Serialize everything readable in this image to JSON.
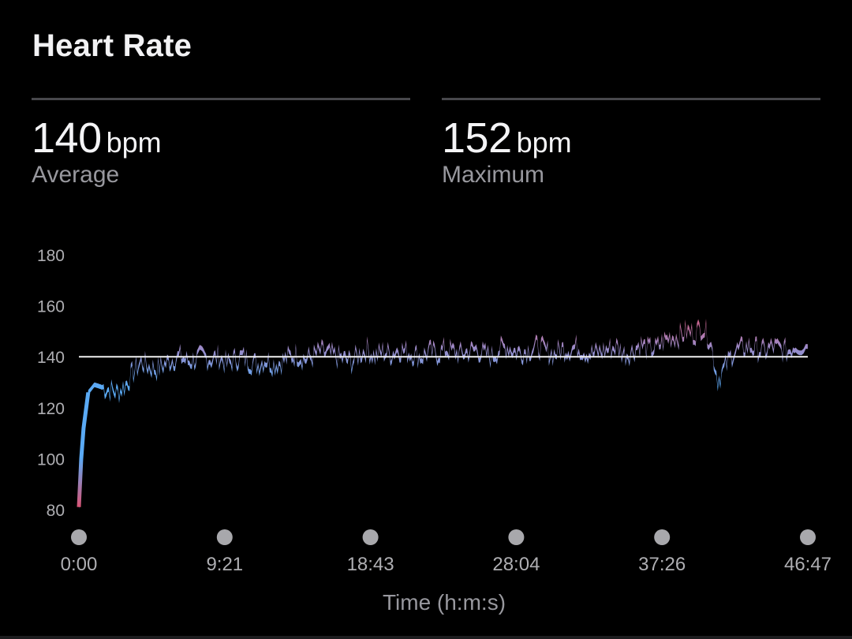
{
  "header": {
    "title": "Heart Rate"
  },
  "stats": {
    "average": {
      "value": "140",
      "unit": "bpm",
      "label": "Average"
    },
    "maximum": {
      "value": "152",
      "unit": "bpm",
      "label": "Maximum"
    }
  },
  "colors": {
    "background": "#000000",
    "low": "#5aaaf5",
    "mid": "#9d8ac8",
    "high": "#e0506e",
    "reference_line": "#f0f0f0",
    "axis_text": "#aeaeb2"
  },
  "chart_data": {
    "type": "area",
    "title": "Heart Rate",
    "xlabel": "Time (h:m:s)",
    "ylabel": "bpm",
    "ylim": [
      80,
      180
    ],
    "y_ticks": [
      "180",
      "160",
      "140",
      "120",
      "100",
      "80"
    ],
    "x_ticks": [
      "0:00",
      "9:21",
      "18:43",
      "28:04",
      "37:26",
      "46:47"
    ],
    "x_range_seconds": [
      0,
      2807
    ],
    "reference_line": {
      "value": 140,
      "label": "Average"
    },
    "grid": false,
    "legend": null,
    "series": [
      {
        "name": "Heart Rate (bpm)",
        "x_minutes": [
          0,
          0.3,
          0.6,
          1,
          1.5,
          2,
          2.5,
          3,
          3.5,
          4,
          4.5,
          5,
          5.5,
          6,
          6.5,
          7,
          7.5,
          8,
          8.5,
          9,
          9.5,
          10,
          10.5,
          11,
          11.5,
          12,
          12.5,
          13,
          13.5,
          14,
          14.5,
          15,
          15.5,
          16,
          16.5,
          17,
          17.5,
          18,
          18.5,
          19,
          19.5,
          20,
          20.5,
          21,
          21.5,
          22,
          22.5,
          23,
          23.5,
          24,
          24.5,
          25,
          25.5,
          26,
          26.5,
          27,
          27.5,
          28,
          28.5,
          29,
          29.5,
          30,
          30.5,
          31,
          31.5,
          32,
          32.5,
          33,
          33.5,
          34,
          34.5,
          35,
          35.5,
          36,
          36.5,
          37,
          37.5,
          38,
          38.5,
          39,
          39.5,
          40,
          40.5,
          41,
          41.5,
          42,
          42.5,
          43,
          43.5,
          44,
          44.5,
          45,
          45.5,
          46,
          46.78
        ],
        "values": [
          81,
          110,
          126,
          129,
          128,
          127,
          126,
          129,
          134,
          138,
          136,
          135,
          137,
          139,
          140,
          138,
          139,
          140,
          139,
          140,
          137,
          139,
          140,
          138,
          137,
          139,
          137,
          138,
          140,
          141,
          139,
          140,
          142,
          141,
          140,
          139,
          138,
          141,
          143,
          140,
          142,
          141,
          143,
          142,
          141,
          140,
          142,
          141,
          143,
          142,
          141,
          142,
          143,
          141,
          140,
          143,
          144,
          142,
          142,
          143,
          144,
          142,
          141,
          143,
          143,
          144,
          142,
          141,
          142,
          143,
          144,
          141,
          142,
          145,
          143,
          143,
          146,
          148,
          148,
          150,
          149,
          152,
          147,
          131,
          136,
          142,
          143,
          144,
          143,
          142,
          144,
          143,
          142,
          145,
          144
        ]
      }
    ]
  },
  "footer": {
    "xlabel": "Time (h:m:s)"
  }
}
